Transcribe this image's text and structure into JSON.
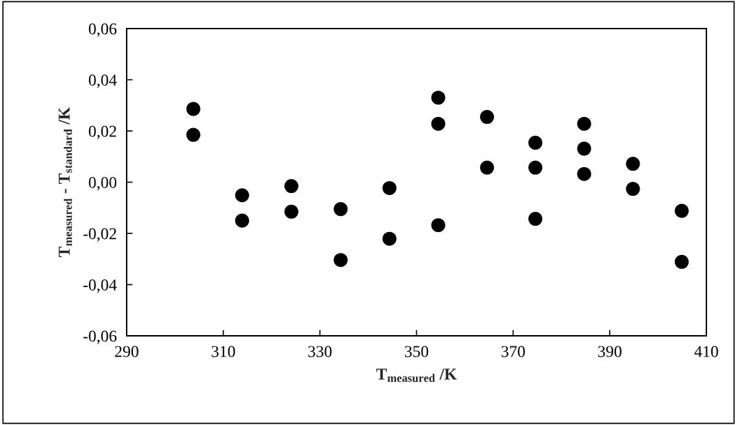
{
  "chart_data": {
    "type": "scatter",
    "xlabel": "T$_{measured}$ /K",
    "ylabel": "T$_{measured}$ - T$_{standard}$ /K",
    "marker": "circle",
    "grid": false,
    "legend": false,
    "xlim": [
      290,
      410
    ],
    "xticks": [
      290,
      310,
      330,
      350,
      370,
      390,
      410
    ],
    "ylim": [
      -0.06,
      0.06
    ],
    "yticks": [
      {
        "value": -0.06,
        "label": "-0,06"
      },
      {
        "value": -0.04,
        "label": "-0,04"
      },
      {
        "value": -0.02,
        "label": "-0,02"
      },
      {
        "value": 0,
        "label": "0,00"
      },
      {
        "value": 0.02,
        "label": "0,02"
      },
      {
        "value": 0.04,
        "label": "0,04"
      },
      {
        "value": 0.06,
        "label": "0,06"
      }
    ],
    "series": [
      {
        "color": "#000000",
        "x": [
          303.8,
          303.8,
          313.9,
          313.9,
          324.1,
          324.1,
          334.3,
          334.3,
          344.4,
          344.4,
          354.5,
          354.5,
          354.5,
          364.6,
          364.6,
          374.6,
          374.6,
          374.6,
          384.7,
          384.7,
          384.7,
          394.8,
          394.8,
          404.9,
          404.9
        ],
        "values": [
          0.0286,
          0.0185,
          -0.0051,
          -0.015,
          -0.0015,
          -0.0115,
          -0.0105,
          -0.0304,
          -0.0023,
          -0.0221,
          0.033,
          0.0228,
          -0.0168,
          0.0255,
          0.0057,
          0.0154,
          0.0057,
          -0.0143,
          0.0228,
          0.0131,
          0.0032,
          0.0072,
          -0.0026,
          -0.0112,
          -0.0311
        ]
      }
    ]
  }
}
